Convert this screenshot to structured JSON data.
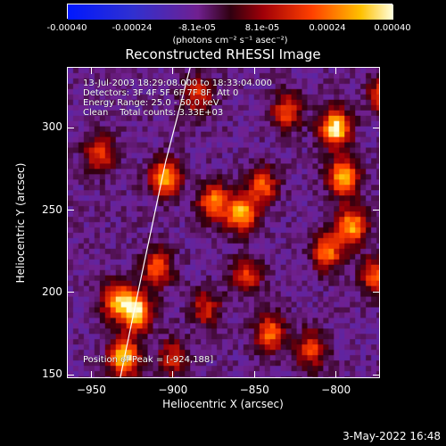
{
  "chart_data": {
    "type": "heatmap",
    "title": "Reconstructed RHESSI Image",
    "xlabel": "Heliocentric X (arcsec)",
    "ylabel": "Heliocentric Y (arcsec)",
    "xlim": [
      -965,
      -773
    ],
    "ylim": [
      148,
      337
    ],
    "x_ticks": [
      -950,
      -900,
      -850,
      -800
    ],
    "y_ticks": [
      150,
      200,
      250,
      300
    ],
    "colorbar": {
      "ticks": [
        "-0.00040",
        "-0.00024",
        "-8.1e-05",
        "8.1e-05",
        "0.00024",
        "0.00040"
      ],
      "range": [
        -0.0004,
        0.0004
      ],
      "units": "(photons cm⁻² s⁻¹ asec⁻²)"
    },
    "info_lines": [
      "13-Jul-2003 18:29:08.000 to 18:33:04.000",
      "Detectors: 3F 4F 5F 6F 7F 8F, Att 0",
      "Energy Range: 25.0 - 50.0 keV",
      "Clean    Total counts: 3.33E+03"
    ],
    "peak_label": "Position of Peak = [-924,188]",
    "peak": [
      -924,
      188
    ],
    "hotspots": [
      {
        "x": -923,
        "y": 188,
        "amp": 1.0
      },
      {
        "x": -930,
        "y": 160,
        "amp": 0.95
      },
      {
        "x": -935,
        "y": 195,
        "amp": 0.75
      },
      {
        "x": -905,
        "y": 270,
        "amp": 0.8
      },
      {
        "x": -910,
        "y": 215,
        "amp": 0.6
      },
      {
        "x": -875,
        "y": 255,
        "amp": 0.7
      },
      {
        "x": -858,
        "y": 248,
        "amp": 0.85
      },
      {
        "x": -845,
        "y": 265,
        "amp": 0.6
      },
      {
        "x": -800,
        "y": 300,
        "amp": 1.0
      },
      {
        "x": -795,
        "y": 270,
        "amp": 0.9
      },
      {
        "x": -790,
        "y": 240,
        "amp": 0.8
      },
      {
        "x": -805,
        "y": 225,
        "amp": 0.7
      },
      {
        "x": -775,
        "y": 210,
        "amp": 0.6
      },
      {
        "x": -840,
        "y": 175,
        "amp": 0.65
      },
      {
        "x": -815,
        "y": 165,
        "amp": 0.55
      },
      {
        "x": -855,
        "y": 210,
        "amp": 0.5
      },
      {
        "x": -880,
        "y": 190,
        "amp": 0.45
      },
      {
        "x": -945,
        "y": 285,
        "amp": 0.55
      },
      {
        "x": -900,
        "y": 160,
        "amp": 0.45
      },
      {
        "x": -885,
        "y": 320,
        "amp": 0.5
      },
      {
        "x": -830,
        "y": 310,
        "amp": 0.55
      },
      {
        "x": -770,
        "y": 320,
        "amp": 0.6
      }
    ],
    "limb": [
      [
        -933,
        148
      ],
      [
        -920,
        210
      ],
      [
        -905,
        280
      ],
      [
        -890,
        337
      ]
    ]
  },
  "timestamp": "3-May-2022 16:48"
}
